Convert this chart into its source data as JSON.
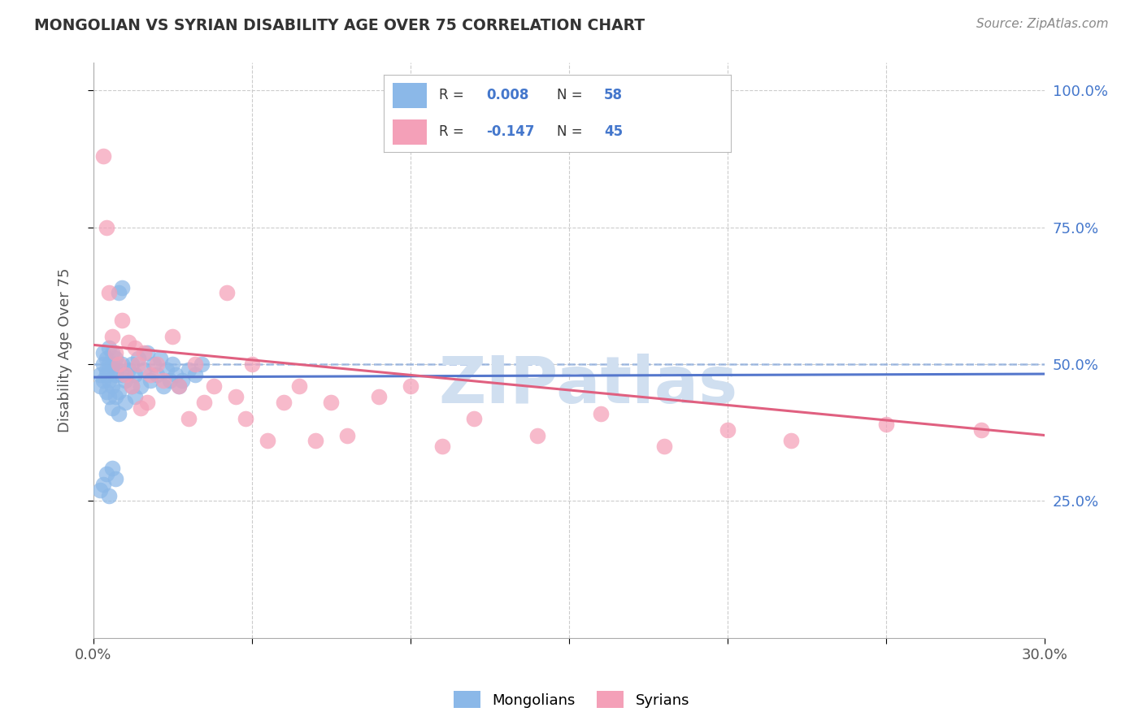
{
  "title": "MONGOLIAN VS SYRIAN DISABILITY AGE OVER 75 CORRELATION CHART",
  "source": "Source: ZipAtlas.com",
  "ylabel": "Disability Age Over 75",
  "xlim": [
    0.0,
    0.3
  ],
  "ylim": [
    0.0,
    1.05
  ],
  "mongolian_color": "#8BB8E8",
  "syrian_color": "#F4A0B8",
  "mongolian_R": "0.008",
  "mongolian_N": "58",
  "syrian_R": "-0.147",
  "syrian_N": "45",
  "background_color": "#ffffff",
  "grid_color": "#cccccc",
  "trend_line_blue": "#5577CC",
  "trend_line_blue_dash": "#88AADD",
  "trend_line_pink": "#E06080",
  "label_color_blue": "#4477CC",
  "watermark_color": "#D0DFF0",
  "mongolian_x": [
    0.002,
    0.002,
    0.003,
    0.003,
    0.003,
    0.004,
    0.004,
    0.004,
    0.004,
    0.005,
    0.005,
    0.005,
    0.005,
    0.006,
    0.006,
    0.006,
    0.006,
    0.007,
    0.007,
    0.007,
    0.007,
    0.008,
    0.008,
    0.009,
    0.009,
    0.01,
    0.01,
    0.011,
    0.012,
    0.012,
    0.013,
    0.013,
    0.014,
    0.015,
    0.016,
    0.017,
    0.018,
    0.019,
    0.02,
    0.021,
    0.022,
    0.023,
    0.024,
    0.025,
    0.026,
    0.027,
    0.028,
    0.03,
    0.032,
    0.034,
    0.002,
    0.003,
    0.004,
    0.005,
    0.006,
    0.007,
    0.008,
    0.009
  ],
  "mongolian_y": [
    0.46,
    0.48,
    0.5,
    0.52,
    0.47,
    0.49,
    0.51,
    0.45,
    0.48,
    0.5,
    0.53,
    0.44,
    0.47,
    0.5,
    0.52,
    0.42,
    0.46,
    0.49,
    0.51,
    0.44,
    0.48,
    0.41,
    0.45,
    0.48,
    0.5,
    0.43,
    0.47,
    0.49,
    0.46,
    0.5,
    0.44,
    0.48,
    0.51,
    0.46,
    0.49,
    0.52,
    0.47,
    0.5,
    0.48,
    0.51,
    0.46,
    0.49,
    0.47,
    0.5,
    0.48,
    0.46,
    0.47,
    0.49,
    0.48,
    0.5,
    0.27,
    0.28,
    0.3,
    0.26,
    0.31,
    0.29,
    0.63,
    0.64
  ],
  "syrian_x": [
    0.003,
    0.004,
    0.005,
    0.006,
    0.007,
    0.008,
    0.009,
    0.01,
    0.011,
    0.012,
    0.013,
    0.014,
    0.015,
    0.016,
    0.017,
    0.018,
    0.02,
    0.022,
    0.025,
    0.027,
    0.03,
    0.032,
    0.035,
    0.038,
    0.042,
    0.045,
    0.048,
    0.05,
    0.055,
    0.06,
    0.065,
    0.07,
    0.075,
    0.08,
    0.09,
    0.1,
    0.11,
    0.12,
    0.14,
    0.16,
    0.18,
    0.2,
    0.22,
    0.25,
    0.28
  ],
  "syrian_y": [
    0.88,
    0.75,
    0.63,
    0.55,
    0.52,
    0.5,
    0.58,
    0.48,
    0.54,
    0.46,
    0.53,
    0.5,
    0.42,
    0.52,
    0.43,
    0.48,
    0.5,
    0.47,
    0.55,
    0.46,
    0.4,
    0.5,
    0.43,
    0.46,
    0.63,
    0.44,
    0.4,
    0.5,
    0.36,
    0.43,
    0.46,
    0.36,
    0.43,
    0.37,
    0.44,
    0.46,
    0.35,
    0.4,
    0.37,
    0.41,
    0.35,
    0.38,
    0.36,
    0.39,
    0.38
  ],
  "mon_trend_x": [
    0.0,
    0.3
  ],
  "mon_trend_y": [
    0.476,
    0.482
  ],
  "syr_trend_x": [
    0.0,
    0.3
  ],
  "syr_trend_y": [
    0.535,
    0.37
  ],
  "dash_line_y": 0.5,
  "ytick_vals": [
    0.25,
    0.5,
    0.75,
    1.0
  ],
  "ytick_labels": [
    "25.0%",
    "50.0%",
    "75.0%",
    "100.0%"
  ],
  "xtick_vals": [
    0.0,
    0.05,
    0.1,
    0.15,
    0.2,
    0.25,
    0.3
  ],
  "xtick_labels": [
    "0.0%",
    "",
    "",
    "",
    "",
    "",
    "30.0%"
  ]
}
